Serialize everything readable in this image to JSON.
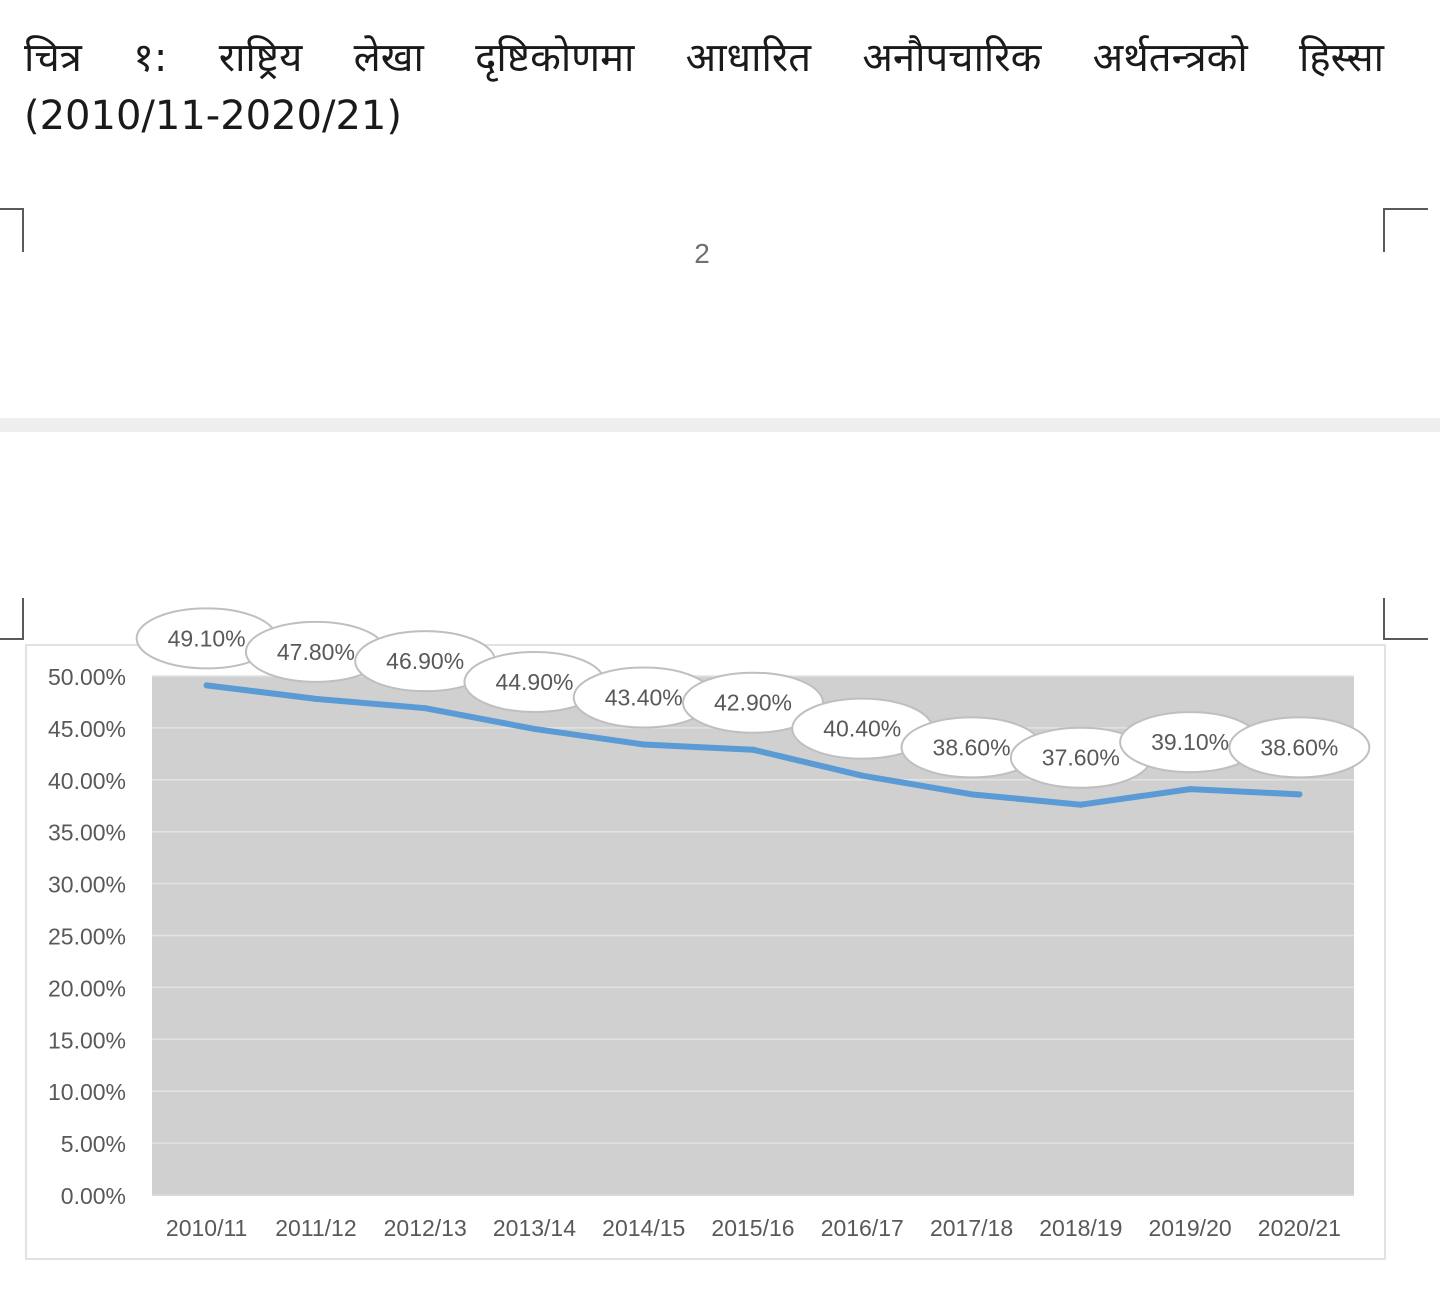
{
  "document": {
    "title": "चित्र १: राष्ट्रिय लेखा दृष्टिकोणमा आधारित अनौपचारिक अर्थतन्त्रको हिस्सा",
    "title_years": "(2010/11-2020/21)",
    "page_number": "2"
  },
  "chart_data": {
    "type": "line",
    "title": "",
    "xlabel": "",
    "ylabel": "",
    "categories": [
      "2010/11",
      "2011/12",
      "2012/13",
      "2013/14",
      "2014/15",
      "2015/16",
      "2016/17",
      "2017/18",
      "2018/19",
      "2019/20",
      "2020/21"
    ],
    "series": [
      {
        "values": [
          49.1,
          47.8,
          46.9,
          44.9,
          43.4,
          42.9,
          40.4,
          38.6,
          37.6,
          39.1,
          38.6
        ],
        "labels": [
          "49.10%",
          "47.80%",
          "46.90%",
          "44.90%",
          "43.40%",
          "42.90%",
          "40.40%",
          "38.60%",
          "37.60%",
          "39.10%",
          "38.60%"
        ]
      }
    ],
    "ylim": [
      0,
      50
    ],
    "yticks": [
      0,
      5,
      10,
      15,
      20,
      25,
      30,
      35,
      40,
      45,
      50
    ],
    "ytick_labels": [
      "0.00%",
      "5.00%",
      "10.00%",
      "15.00%",
      "20.00%",
      "25.00%",
      "30.00%",
      "35.00%",
      "40.00%",
      "45.00%",
      "50.00%"
    ],
    "grid": true,
    "legend": "none",
    "data_labels": "callout",
    "colors": {
      "line": "#5b9bd5",
      "plot_background": "#d0d0d0",
      "gridline": "#e3e3e3",
      "axis_text": "#595959",
      "callout_fill": "#ffffff",
      "callout_border": "#bfbfbf"
    }
  }
}
